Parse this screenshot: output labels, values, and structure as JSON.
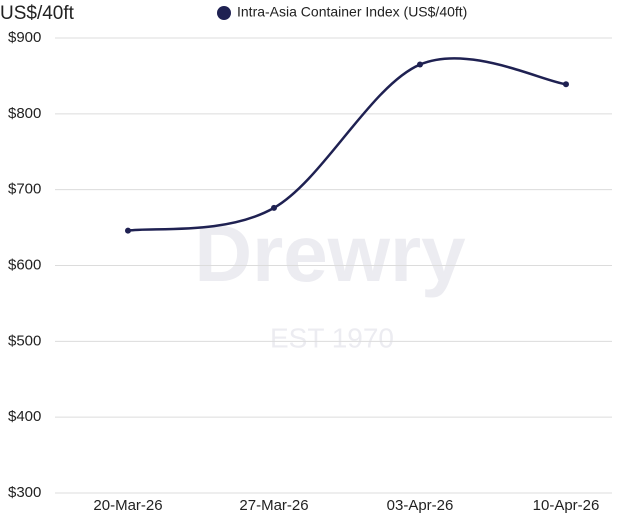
{
  "chart_data": {
    "type": "line",
    "y_axis_label": "US$/40ft",
    "categories": [
      "20-Mar-26",
      "27-Mar-26",
      "03-Apr-26",
      "10-Apr-26"
    ],
    "series": [
      {
        "name": "Intra-Asia Container Index (US$/40ft)",
        "color": "#1f2152",
        "values": [
          646,
          676,
          865,
          839
        ]
      }
    ],
    "ylim": [
      300,
      900
    ],
    "yticks": [
      {
        "value": 300,
        "label": "$300"
      },
      {
        "value": 400,
        "label": "$400"
      },
      {
        "value": 500,
        "label": "$500"
      },
      {
        "value": 600,
        "label": "$600"
      },
      {
        "value": 700,
        "label": "$700"
      },
      {
        "value": 800,
        "label": "$800"
      },
      {
        "value": 900,
        "label": "$900"
      }
    ],
    "grid": true,
    "smooth": true,
    "legend": "top",
    "watermark": {
      "name": "Drewry",
      "subtitle": "EST 1970"
    }
  }
}
